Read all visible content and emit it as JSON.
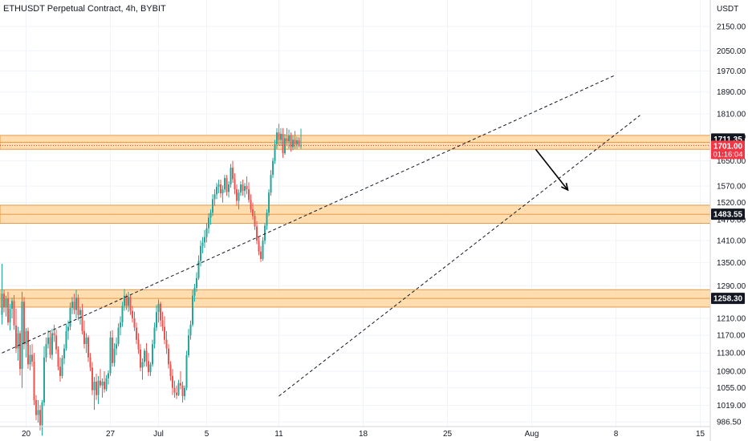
{
  "chart_data": {
    "type": "candlestick",
    "title": "ETHUSDT Perpetual Contract, 4h, BYBIT",
    "currency": "USDT",
    "ylim": [
      960,
      2210
    ],
    "y_scale": "log",
    "y_ticks": [
      "2150.00",
      "2050.00",
      "1970.00",
      "1890.00",
      "1810.00",
      "1730.00",
      "1650.00",
      "1570.00",
      "1520.00",
      "1470.00",
      "1410.00",
      "1350.00",
      "1290.00",
      "1210.00",
      "1170.00",
      "1130.00",
      "1090.00",
      "1055.00",
      "1019.00",
      "986.50"
    ],
    "x_ticks": [
      {
        "label": "20",
        "index": 12
      },
      {
        "label": "27",
        "index": 54
      },
      {
        "label": "Jul",
        "index": 78
      },
      {
        "label": "5",
        "index": 102
      },
      {
        "label": "11",
        "index": 138
      },
      {
        "label": "18",
        "index": 180
      },
      {
        "label": "25",
        "index": 222
      },
      {
        "label": "Aug",
        "index": 264
      },
      {
        "label": "8",
        "index": 306
      },
      {
        "label": "15",
        "index": 348
      }
    ],
    "zones": [
      {
        "top": 1735,
        "bottom": 1688,
        "label": "1711.35"
      },
      {
        "top": 1512,
        "bottom": 1459,
        "label": "1483.55"
      },
      {
        "top": 1280,
        "bottom": 1237,
        "label": "1258.30"
      }
    ],
    "trendlines": [
      {
        "from": [
          0,
          1130
        ],
        "to": [
          306,
          1955
        ]
      },
      {
        "from": [
          138,
          1038
        ],
        "to": [
          318,
          1805
        ]
      }
    ],
    "arrow": {
      "from": [
        266,
        1688
      ],
      "to": [
        282,
        1558
      ]
    },
    "last_price": "1701.00",
    "countdown": "01:16:04",
    "colors": {
      "up": "#26a69a",
      "down": "#ef5350"
    },
    "candles": [
      [
        1218,
        1347,
        1195,
        1270
      ],
      [
        1270,
        1280,
        1224,
        1236
      ],
      [
        1236,
        1265,
        1214,
        1258
      ],
      [
        1258,
        1275,
        1193,
        1200
      ],
      [
        1200,
        1245,
        1181,
        1233
      ],
      [
        1233,
        1260,
        1210,
        1252
      ],
      [
        1252,
        1267,
        1183,
        1193
      ],
      [
        1193,
        1233,
        1130,
        1140
      ],
      [
        1140,
        1190,
        1113,
        1175
      ],
      [
        1175,
        1181,
        1081,
        1095
      ],
      [
        1095,
        1275,
        1055,
        1250
      ],
      [
        1250,
        1262,
        1138,
        1150
      ],
      [
        1150,
        1187,
        1120,
        1180
      ],
      [
        1180,
        1188,
        1095,
        1105
      ],
      [
        1105,
        1148,
        1092,
        1126
      ],
      [
        1126,
        1150,
        1100,
        1111
      ],
      [
        1111,
        1130,
        1020,
        1030
      ],
      [
        1030,
        1040,
        990,
        1000
      ],
      [
        1000,
        1030,
        985,
        1010
      ],
      [
        1010,
        1020,
        970,
        980
      ],
      [
        980,
        1030,
        960,
        1025
      ],
      [
        1025,
        1145,
        1018,
        1120
      ],
      [
        1120,
        1165,
        1110,
        1150
      ],
      [
        1150,
        1182,
        1140,
        1165
      ],
      [
        1165,
        1178,
        1118,
        1126
      ],
      [
        1126,
        1185,
        1115,
        1175
      ],
      [
        1175,
        1195,
        1155,
        1170
      ],
      [
        1170,
        1183,
        1128,
        1138
      ],
      [
        1138,
        1145,
        1092,
        1100
      ],
      [
        1100,
        1120,
        1068,
        1080
      ],
      [
        1080,
        1125,
        1075,
        1118
      ],
      [
        1118,
        1150,
        1105,
        1140
      ],
      [
        1140,
        1195,
        1135,
        1180
      ],
      [
        1180,
        1205,
        1160,
        1190
      ],
      [
        1190,
        1248,
        1182,
        1235
      ],
      [
        1235,
        1262,
        1220,
        1250
      ],
      [
        1250,
        1270,
        1220,
        1230
      ],
      [
        1230,
        1280,
        1210,
        1260
      ],
      [
        1260,
        1268,
        1205,
        1218
      ],
      [
        1218,
        1236,
        1195,
        1230
      ],
      [
        1230,
        1245,
        1172,
        1180
      ],
      [
        1180,
        1205,
        1140,
        1150
      ],
      [
        1150,
        1175,
        1130,
        1165
      ],
      [
        1165,
        1170,
        1110,
        1120
      ],
      [
        1120,
        1130,
        1090,
        1098
      ],
      [
        1098,
        1110,
        1040,
        1050
      ],
      [
        1050,
        1078,
        1010,
        1068
      ],
      [
        1068,
        1085,
        1030,
        1040
      ],
      [
        1040,
        1080,
        1022,
        1070
      ],
      [
        1070,
        1095,
        1055,
        1060
      ],
      [
        1060,
        1075,
        1035,
        1068
      ],
      [
        1068,
        1090,
        1045,
        1052
      ],
      [
        1052,
        1082,
        1048,
        1075
      ],
      [
        1075,
        1092,
        1062,
        1086
      ],
      [
        1086,
        1180,
        1080,
        1165
      ],
      [
        1165,
        1182,
        1100,
        1108
      ],
      [
        1108,
        1152,
        1100,
        1140
      ],
      [
        1140,
        1165,
        1125,
        1150
      ],
      [
        1150,
        1198,
        1145,
        1188
      ],
      [
        1188,
        1215,
        1170,
        1200
      ],
      [
        1200,
        1250,
        1190,
        1240
      ],
      [
        1240,
        1282,
        1228,
        1265
      ],
      [
        1265,
        1270,
        1230,
        1240
      ],
      [
        1240,
        1275,
        1225,
        1262
      ],
      [
        1262,
        1268,
        1218,
        1228
      ],
      [
        1228,
        1240,
        1200,
        1210
      ],
      [
        1210,
        1226,
        1180,
        1188
      ],
      [
        1188,
        1200,
        1150,
        1160
      ],
      [
        1160,
        1175,
        1128,
        1138
      ],
      [
        1138,
        1150,
        1090,
        1098
      ],
      [
        1098,
        1118,
        1072,
        1110
      ],
      [
        1110,
        1140,
        1100,
        1135
      ],
      [
        1135,
        1152,
        1100,
        1112
      ],
      [
        1112,
        1130,
        1080,
        1088
      ],
      [
        1088,
        1110,
        1080,
        1105
      ],
      [
        1105,
        1160,
        1100,
        1150
      ],
      [
        1150,
        1200,
        1140,
        1188
      ],
      [
        1188,
        1242,
        1180,
        1225
      ],
      [
        1225,
        1256,
        1200,
        1245
      ],
      [
        1245,
        1250,
        1190,
        1205
      ],
      [
        1205,
        1226,
        1180,
        1190
      ],
      [
        1190,
        1215,
        1150,
        1160
      ],
      [
        1160,
        1180,
        1128,
        1140
      ],
      [
        1140,
        1150,
        1096,
        1105
      ],
      [
        1105,
        1112,
        1070,
        1080
      ],
      [
        1080,
        1095,
        1040,
        1055
      ],
      [
        1055,
        1070,
        1035,
        1045
      ],
      [
        1045,
        1060,
        1032,
        1040
      ],
      [
        1040,
        1072,
        1038,
        1065
      ],
      [
        1065,
        1090,
        1052,
        1060
      ],
      [
        1060,
        1068,
        1025,
        1038
      ],
      [
        1038,
        1060,
        1030,
        1055
      ],
      [
        1055,
        1135,
        1050,
        1125
      ],
      [
        1125,
        1185,
        1120,
        1170
      ],
      [
        1170,
        1205,
        1160,
        1195
      ],
      [
        1195,
        1280,
        1190,
        1265
      ],
      [
        1265,
        1295,
        1250,
        1285
      ],
      [
        1285,
        1325,
        1275,
        1310
      ],
      [
        1310,
        1370,
        1305,
        1355
      ],
      [
        1355,
        1410,
        1340,
        1395
      ],
      [
        1395,
        1420,
        1375,
        1405
      ],
      [
        1405,
        1440,
        1390,
        1420
      ],
      [
        1420,
        1460,
        1405,
        1445
      ],
      [
        1445,
        1488,
        1430,
        1475
      ],
      [
        1475,
        1500,
        1455,
        1490
      ],
      [
        1490,
        1545,
        1480,
        1530
      ],
      [
        1530,
        1560,
        1510,
        1545
      ],
      [
        1545,
        1580,
        1530,
        1568
      ],
      [
        1568,
        1590,
        1548,
        1575
      ],
      [
        1575,
        1590,
        1535,
        1548
      ],
      [
        1548,
        1572,
        1520,
        1560
      ],
      [
        1560,
        1605,
        1550,
        1595
      ],
      [
        1595,
        1605,
        1540,
        1552
      ],
      [
        1552,
        1585,
        1535,
        1575
      ],
      [
        1575,
        1640,
        1565,
        1628
      ],
      [
        1628,
        1650,
        1580,
        1592
      ],
      [
        1592,
        1610,
        1545,
        1560
      ],
      [
        1560,
        1575,
        1510,
        1525
      ],
      [
        1525,
        1560,
        1500,
        1550
      ],
      [
        1550,
        1585,
        1540,
        1575
      ],
      [
        1575,
        1590,
        1540,
        1555
      ],
      [
        1555,
        1580,
        1535,
        1570
      ],
      [
        1570,
        1600,
        1545,
        1560
      ],
      [
        1560,
        1582,
        1520,
        1528
      ],
      [
        1528,
        1545,
        1490,
        1500
      ],
      [
        1500,
        1520,
        1470,
        1480
      ],
      [
        1480,
        1495,
        1440,
        1450
      ],
      [
        1450,
        1465,
        1400,
        1410
      ],
      [
        1410,
        1420,
        1370,
        1380
      ],
      [
        1380,
        1395,
        1352,
        1360
      ],
      [
        1360,
        1420,
        1355,
        1410
      ],
      [
        1410,
        1460,
        1400,
        1452
      ],
      [
        1452,
        1500,
        1440,
        1490
      ],
      [
        1490,
        1560,
        1480,
        1550
      ],
      [
        1550,
        1620,
        1540,
        1605
      ],
      [
        1605,
        1660,
        1595,
        1650
      ],
      [
        1650,
        1720,
        1640,
        1705
      ],
      [
        1705,
        1760,
        1690,
        1745
      ],
      [
        1745,
        1775,
        1700,
        1720
      ],
      [
        1720,
        1760,
        1700,
        1740
      ],
      [
        1740,
        1760,
        1660,
        1675
      ],
      [
        1675,
        1740,
        1670,
        1725
      ],
      [
        1725,
        1760,
        1700,
        1715
      ],
      [
        1715,
        1755,
        1690,
        1735
      ],
      [
        1735,
        1745,
        1680,
        1695
      ],
      [
        1695,
        1735,
        1685,
        1720
      ],
      [
        1720,
        1750,
        1690,
        1705
      ],
      [
        1705,
        1730,
        1690,
        1718
      ],
      [
        1718,
        1728,
        1695,
        1700
      ],
      [
        1700,
        1758,
        1690,
        1701
      ]
    ]
  }
}
